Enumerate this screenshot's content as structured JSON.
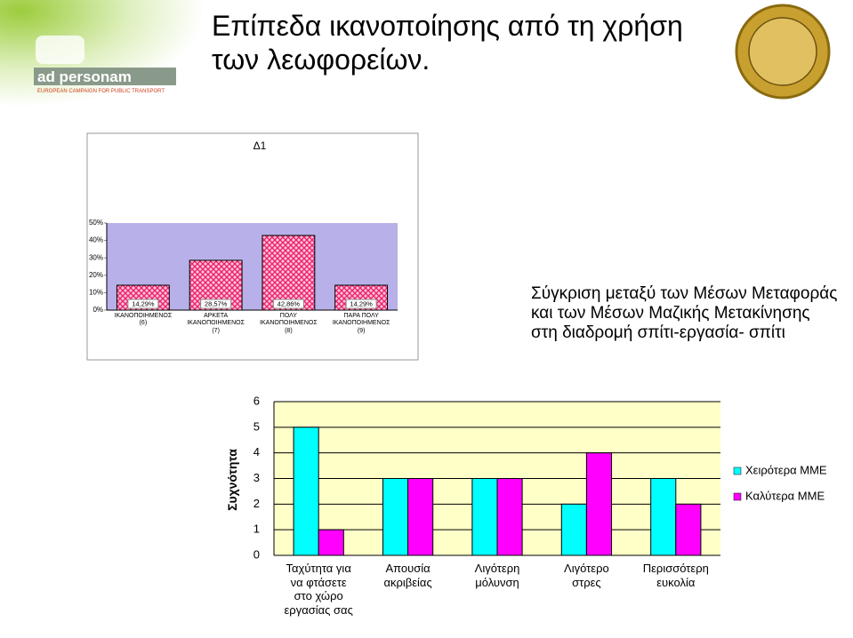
{
  "title": "Επίπεδα ικανοποίησης από τη χρήση των λεωφορείων.",
  "logo": {
    "name": "ad personam",
    "tagline": "EUROPEAN CAMPAIGN FOR PUBLIC TRANSPORT"
  },
  "side_text": "Σύγκριση μεταξύ των Μέσων Μεταφοράς και των Μέσων Μαζικής Μετακίνησης στη διαδρομή σπίτι-εργασία- σπίτι",
  "chart_data": [
    {
      "type": "bar",
      "title": "Δ1",
      "categories": [
        "ΙΚΑΝΟΠΟΙΗΜΕΝΟΣ\n(6)",
        "ΑΡΚΕΤΑ\nΙΚΑΝΟΠΟΙΗΜΕΝΟΣ\n(7)",
        "ΠΟΛΥ\nΙΚΑΝΟΠΟΙΗΜΕΝΟΣ\n(8)",
        "ΠΑΡΑ ΠΟΛΥ\nΙΚΑΝΟΠΟΙΗΜΕΝΟΣ\n(9)"
      ],
      "values": [
        14.29,
        28.57,
        42.86,
        14.29
      ],
      "value_labels": [
        "14,29%",
        "28,57%",
        "42,86%",
        "14,29%"
      ],
      "color": "#e8206a",
      "ylim": [
        0,
        50
      ],
      "yticks": [
        {
          "value": 0,
          "label": "0%"
        },
        {
          "value": 10,
          "label": "10%"
        },
        {
          "value": 20,
          "label": "20%"
        },
        {
          "value": 30,
          "label": "30%"
        },
        {
          "value": 40,
          "label": "40%"
        },
        {
          "value": 50,
          "label": "50%"
        }
      ],
      "grid": false
    },
    {
      "type": "bar",
      "y_label": "Συχνότητα",
      "categories": [
        "Ταχύτητα για\nνα φτάσετε\nστο χώρο\nεργασίας σας",
        "Απουσία\nακριβείας",
        "Λιγότερη\nμόλυνση",
        "Λιγότερο\nστρες",
        "Περισσότερη\nευκολία"
      ],
      "series": [
        {
          "name": "Χειρότερα ΜΜΕ",
          "color": "#00ffff",
          "values": [
            5,
            3,
            3,
            2,
            3
          ]
        },
        {
          "name": "Καλύτερα ΜΜΕ",
          "color": "#ff00ff",
          "values": [
            1,
            3,
            3,
            4,
            2
          ]
        }
      ],
      "ylim": [
        0,
        6
      ],
      "yticks": [
        0,
        1,
        2,
        3,
        4,
        5,
        6
      ],
      "grid": true
    }
  ]
}
